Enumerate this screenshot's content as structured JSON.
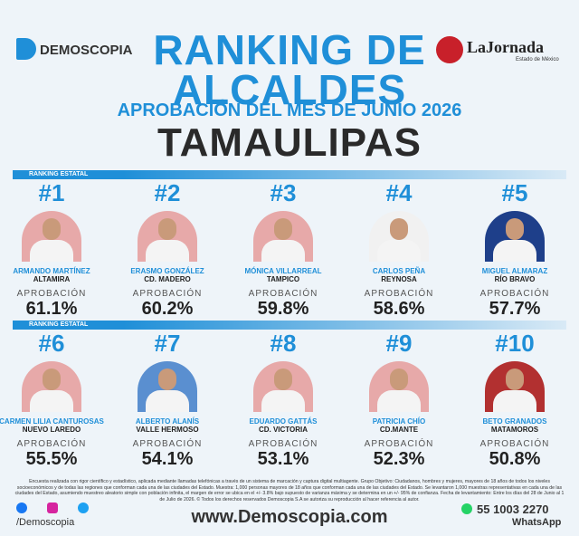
{
  "header": {
    "brand": "DEMOSCOPIA",
    "title_line1": "RANKING DE",
    "title_line2": "ALCALDES",
    "subtitle": "APROBACIÓN DEL MES DE JUNIO 2026",
    "state": "TAMAULIPAS",
    "partner": "LaJornada",
    "partner_sub": "Estado de México"
  },
  "sections": [
    {
      "tag": "RANKING ESTATAL",
      "items": [
        {
          "rank": "#1",
          "name": "ARMANDO MARTÍNEZ",
          "city": "ALTAMIRA",
          "label": "APROBACIÓN",
          "approval": "61.1%"
        },
        {
          "rank": "#2",
          "name": "ERASMO GONZÁLEZ",
          "city": "CD. MADERO",
          "label": "APROBACIÓN",
          "approval": "60.2%"
        },
        {
          "rank": "#3",
          "name": "MÓNICA VILLARREAL",
          "city": "TAMPICO",
          "label": "APROBACIÓN",
          "approval": "59.8%"
        },
        {
          "rank": "#4",
          "name": "CARLOS PEÑA",
          "city": "REYNOSA",
          "label": "APROBACIÓN",
          "approval": "58.6%"
        },
        {
          "rank": "#5",
          "name": "MIGUEL ALMARAZ",
          "city": "RÍO BRAVO",
          "label": "APROBACIÓN",
          "approval": "57.7%"
        }
      ]
    },
    {
      "tag": "RANKING ESTATAL",
      "items": [
        {
          "rank": "#6",
          "name": "CARMEN LILIA CANTUROSAS",
          "city": "NUEVO LAREDO",
          "label": "APROBACIÓN",
          "approval": "55.5%"
        },
        {
          "rank": "#7",
          "name": "ALBERTO ALANÍS",
          "city": "VALLE HERMOSO",
          "label": "APROBACIÓN",
          "approval": "54.1%"
        },
        {
          "rank": "#8",
          "name": "EDUARDO GATTÁS",
          "city": "CD. VICTORIA",
          "label": "APROBACIÓN",
          "approval": "53.1%"
        },
        {
          "rank": "#9",
          "name": "PATRICIA CHÍO",
          "city": "CD.MANTE",
          "label": "APROBACIÓN",
          "approval": "52.3%"
        },
        {
          "rank": "#10",
          "name": "BETO GRANADOS",
          "city": "MATAMOROS",
          "label": "APROBACIÓN",
          "approval": "50.8%"
        }
      ]
    }
  ],
  "footer": {
    "disclaimer": "Encuesta realizada con rigor científico y estadístico, aplicada mediante llamadas telefónicas a través de un sistema de marcación y captura digital multiagente. Grupo Objetivo: Ciudadanos, hombres y mujeres, mayores de 18 años de todos los niveles socioeconómicos y de todas las regiones que conforman cada una de las ciudades del Estado. Muestra: 1,000 personas mayores de 18 años que conforman cada una de las ciudades del Estado. Se levantaron 1,000 muestras representativas en cada una de las ciudades del Estado, asumiendo muestreo aleatorio simple con población infinita, el margen de error se ubica en el +/- 3.8% bajo supuesto de varianza máxima y se determina en un +/- 95% de confianza. Fecha de levantamiento: Entre los días del 28 de Junio al 1 de Julio de 2026. © Todos los derechos reservados Demoscopia S.A se autoriza su reproducción al hacer referencia al autor.",
    "social": "/Demoscopia",
    "website": "www.Demoscopia.com",
    "phone": "55 1003 2270",
    "phone_label": "WhatsApp"
  }
}
